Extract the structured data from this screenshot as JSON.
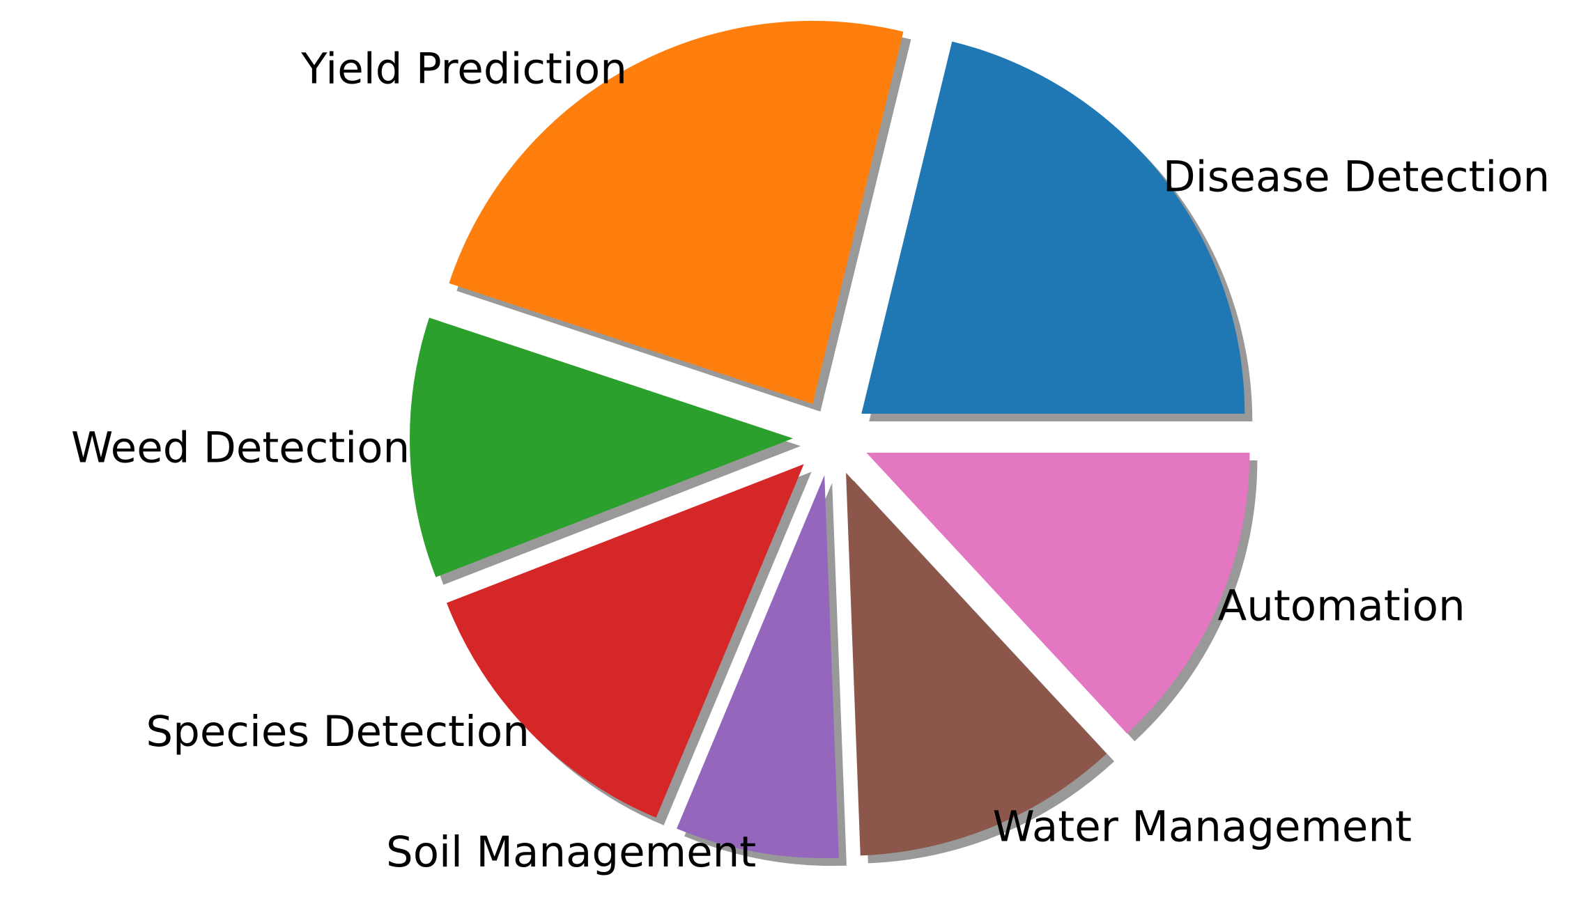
{
  "chart_data": {
    "type": "pie",
    "title": "",
    "legend": "none",
    "start_angle": "0 degrees (3 o'clock)",
    "direction": "counterclockwise",
    "exploded": true,
    "shadow": true,
    "slices": [
      {
        "label": "Disease Detection",
        "value": 21.2,
        "color": "#1f77b4"
      },
      {
        "label": "Yield Prediction",
        "value": 23.7,
        "color": "#ff7f0e"
      },
      {
        "label": "Weed Detection",
        "value": 11.0,
        "color": "#2ca02c"
      },
      {
        "label": "Species Detection",
        "value": 12.8,
        "color": "#d62728"
      },
      {
        "label": "Soil Management",
        "value": 6.9,
        "color": "#9467bd"
      },
      {
        "label": "Water Management",
        "value": 11.3,
        "color": "#8c564b"
      },
      {
        "label": "Automation",
        "value": 13.1,
        "color": "#e377c2"
      }
    ]
  }
}
